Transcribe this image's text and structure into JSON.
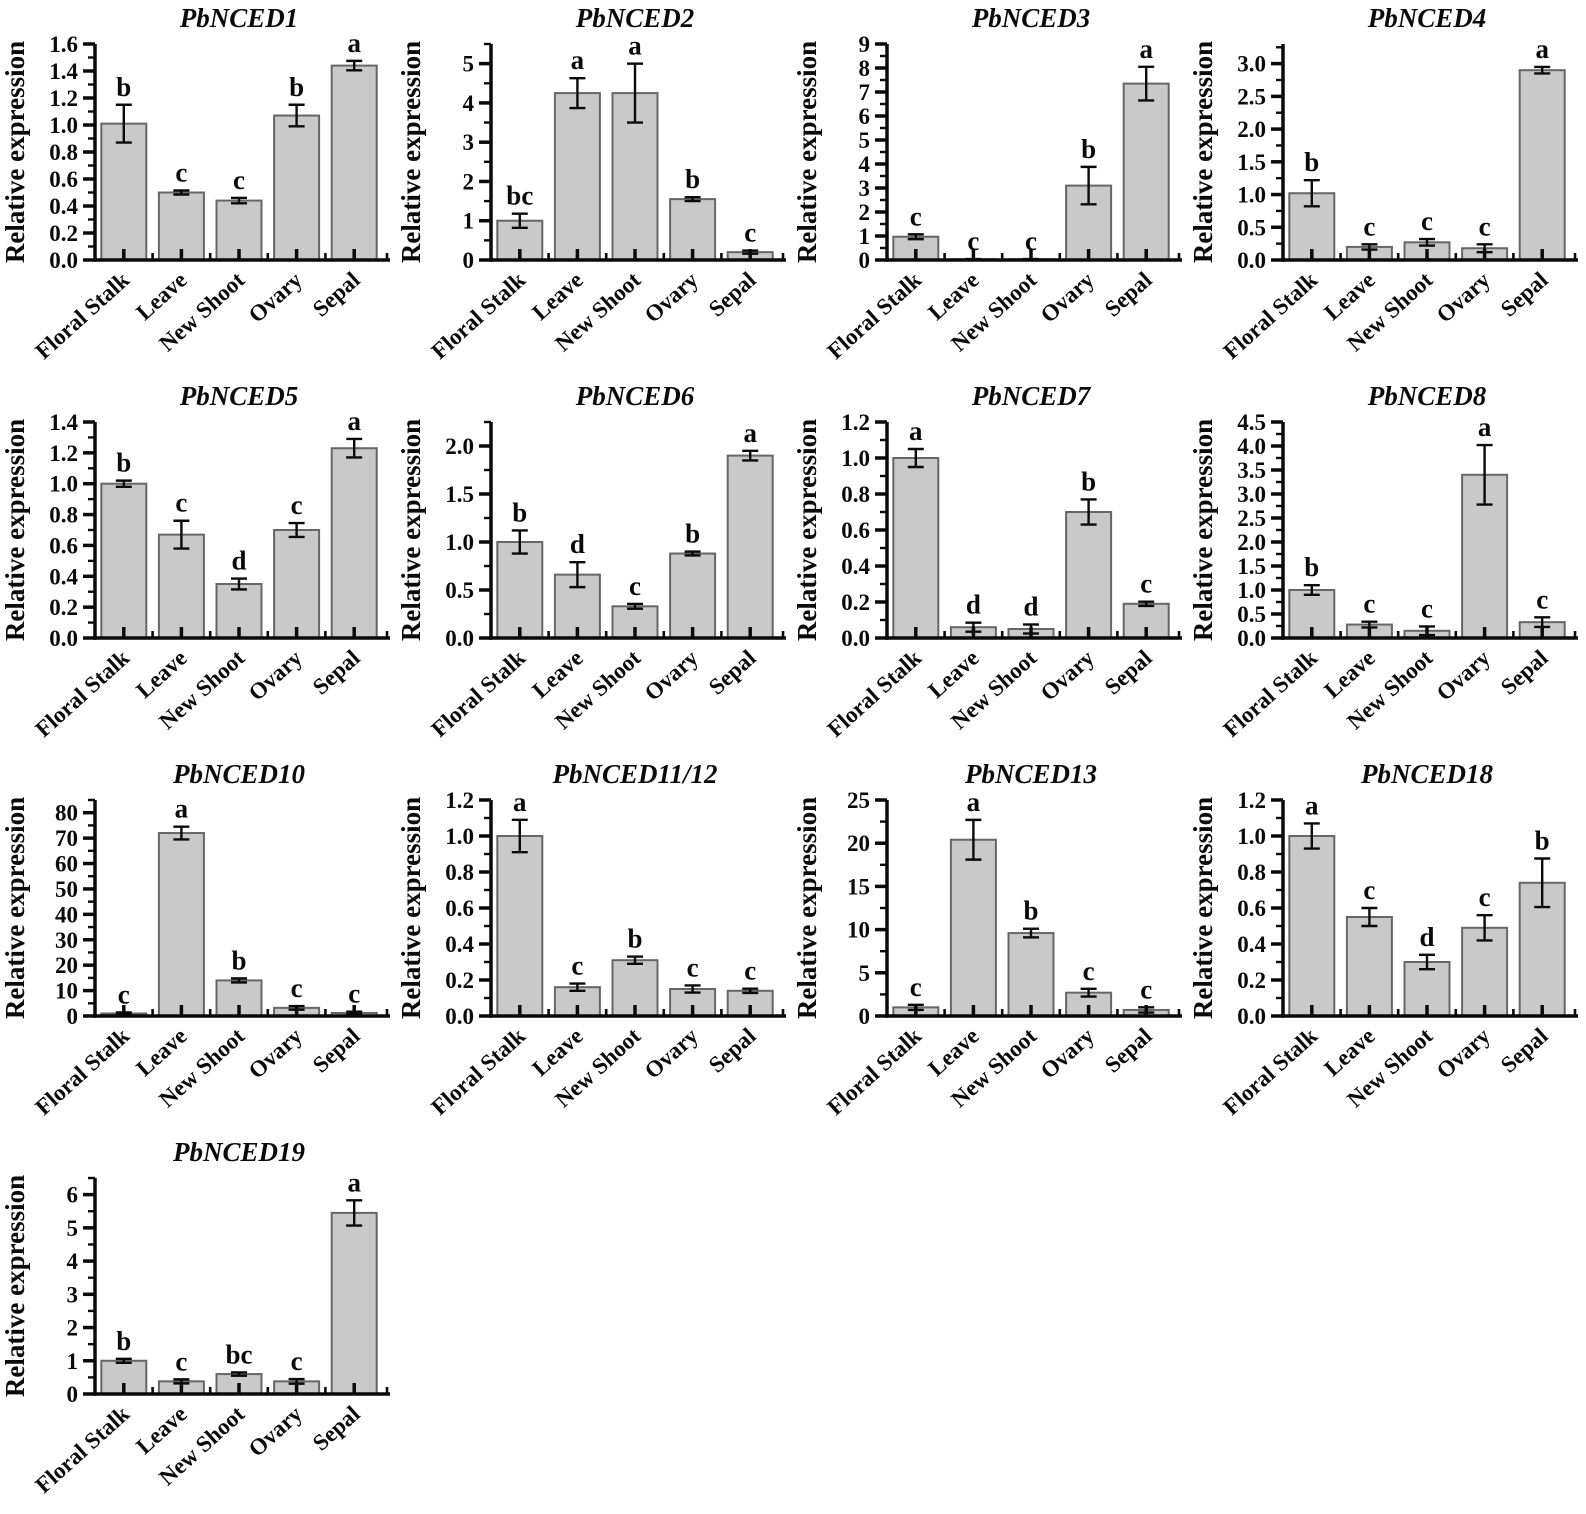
{
  "figure": {
    "ylabel": "Relative expression",
    "categories": [
      "Floral Stalk",
      "Leave",
      "New Shoot",
      "Ovary",
      "Sepal"
    ],
    "colors": {
      "bar_fill": "#c9c9c9",
      "bar_stroke": "#666666",
      "axis": "#0a0a0a",
      "background": "#ffffff"
    }
  },
  "chart_data": [
    {
      "type": "bar",
      "title": "PbNCED1",
      "ylabel": "Relative expression",
      "categories": [
        "Floral Stalk",
        "Leave",
        "New Shoot",
        "Ovary",
        "Sepal"
      ],
      "values": [
        1.01,
        0.5,
        0.44,
        1.07,
        1.44
      ],
      "errors": [
        0.14,
        0.015,
        0.02,
        0.08,
        0.035
      ],
      "letters": [
        "b",
        "c",
        "c",
        "b",
        "a"
      ],
      "ylim": [
        0,
        1.6
      ],
      "ytick_step": 0.2,
      "y_decimals": 1,
      "grid": false,
      "legend": false
    },
    {
      "type": "bar",
      "title": "PbNCED2",
      "ylabel": "Relative expression",
      "categories": [
        "Floral Stalk",
        "Leave",
        "New Shoot",
        "Ovary",
        "Sepal"
      ],
      "values": [
        1.0,
        4.25,
        4.25,
        1.55,
        0.2
      ],
      "errors": [
        0.18,
        0.38,
        0.75,
        0.05,
        0.04
      ],
      "letters": [
        "bc",
        "a",
        "a",
        "b",
        "c"
      ],
      "ylim": [
        0,
        5.5
      ],
      "ytick_step": 1,
      "y_decimals": 0,
      "grid": false,
      "legend": false
    },
    {
      "type": "bar",
      "title": "PbNCED3",
      "ylabel": "Relative expression",
      "categories": [
        "Floral Stalk",
        "Leave",
        "New Shoot",
        "Ovary",
        "Sepal"
      ],
      "values": [
        0.97,
        0.03,
        0.03,
        3.1,
        7.35
      ],
      "errors": [
        0.1,
        0.01,
        0.01,
        0.78,
        0.7
      ],
      "letters": [
        "c",
        "c",
        "c",
        "b",
        "a"
      ],
      "ylim": [
        0,
        9
      ],
      "ytick_step": 1,
      "y_decimals": 0,
      "grid": false,
      "legend": false
    },
    {
      "type": "bar",
      "title": "PbNCED4",
      "ylabel": "Relative expression",
      "categories": [
        "Floral Stalk",
        "Leave",
        "New Shoot",
        "Ovary",
        "Sepal"
      ],
      "values": [
        1.02,
        0.2,
        0.27,
        0.18,
        2.9
      ],
      "errors": [
        0.2,
        0.04,
        0.05,
        0.06,
        0.05
      ],
      "letters": [
        "b",
        "c",
        "c",
        "c",
        "a"
      ],
      "ylim": [
        0,
        3.3
      ],
      "ytick_step": 0.5,
      "y_decimals": 1,
      "grid": false,
      "legend": false
    },
    {
      "type": "bar",
      "title": "PbNCED5",
      "ylabel": "Relative expression",
      "categories": [
        "Floral Stalk",
        "Leave",
        "New Shoot",
        "Ovary",
        "Sepal"
      ],
      "values": [
        1.0,
        0.67,
        0.35,
        0.7,
        1.23
      ],
      "errors": [
        0.02,
        0.09,
        0.035,
        0.045,
        0.06
      ],
      "letters": [
        "b",
        "c",
        "d",
        "c",
        "a"
      ],
      "ylim": [
        0,
        1.4
      ],
      "ytick_step": 0.2,
      "y_decimals": 1,
      "grid": false,
      "legend": false
    },
    {
      "type": "bar",
      "title": "PbNCED6",
      "ylabel": "Relative expression",
      "categories": [
        "Floral Stalk",
        "Leave",
        "New Shoot",
        "Ovary",
        "Sepal"
      ],
      "values": [
        1.0,
        0.66,
        0.33,
        0.88,
        1.9
      ],
      "errors": [
        0.12,
        0.13,
        0.025,
        0.02,
        0.05
      ],
      "letters": [
        "b",
        "d",
        "c",
        "b",
        "a"
      ],
      "ylim": [
        0,
        2.25
      ],
      "ytick_step": 0.5,
      "y_decimals": 1,
      "grid": false,
      "legend": false
    },
    {
      "type": "bar",
      "title": "PbNCED7",
      "ylabel": "Relative expression",
      "categories": [
        "Floral Stalk",
        "Leave",
        "New Shoot",
        "Ovary",
        "Sepal"
      ],
      "values": [
        1.0,
        0.06,
        0.05,
        0.7,
        0.19
      ],
      "errors": [
        0.05,
        0.025,
        0.025,
        0.07,
        0.012
      ],
      "letters": [
        "a",
        "d",
        "d",
        "b",
        "c"
      ],
      "ylim": [
        0,
        1.2
      ],
      "ytick_step": 0.2,
      "y_decimals": 1,
      "grid": false,
      "legend": false
    },
    {
      "type": "bar",
      "title": "PbNCED8",
      "ylabel": "Relative expression",
      "categories": [
        "Floral Stalk",
        "Leave",
        "New Shoot",
        "Ovary",
        "Sepal"
      ],
      "values": [
        1.0,
        0.28,
        0.15,
        3.4,
        0.33
      ],
      "errors": [
        0.1,
        0.06,
        0.09,
        0.62,
        0.1
      ],
      "letters": [
        "b",
        "c",
        "c",
        "a",
        "c"
      ],
      "ylim": [
        0,
        4.5
      ],
      "ytick_step": 0.5,
      "y_decimals": 1,
      "grid": false,
      "legend": false
    },
    {
      "type": "bar",
      "title": "PbNCED10",
      "ylabel": "Relative expression",
      "categories": [
        "Floral Stalk",
        "Leave",
        "New Shoot",
        "Ovary",
        "Sepal"
      ],
      "values": [
        1.0,
        72,
        14,
        3.2,
        1.2
      ],
      "errors": [
        0.4,
        2.5,
        0.8,
        0.7,
        0.5
      ],
      "letters": [
        "c",
        "a",
        "b",
        "c",
        "c"
      ],
      "ylim": [
        0,
        85
      ],
      "ytick_step": 10,
      "y_decimals": 0,
      "grid": false,
      "legend": false
    },
    {
      "type": "bar",
      "title": "PbNCED11/12",
      "ylabel": "Relative expression",
      "categories": [
        "Floral Stalk",
        "Leave",
        "New Shoot",
        "Ovary",
        "Sepal"
      ],
      "values": [
        1.0,
        0.16,
        0.31,
        0.15,
        0.14
      ],
      "errors": [
        0.09,
        0.02,
        0.02,
        0.02,
        0.012
      ],
      "letters": [
        "a",
        "c",
        "b",
        "c",
        "c"
      ],
      "ylim": [
        0,
        1.2
      ],
      "ytick_step": 0.2,
      "y_decimals": 1,
      "grid": false,
      "legend": false
    },
    {
      "type": "bar",
      "title": "PbNCED13",
      "ylabel": "Relative expression",
      "categories": [
        "Floral Stalk",
        "Leave",
        "New Shoot",
        "Ovary",
        "Sepal"
      ],
      "values": [
        1.0,
        20.4,
        9.6,
        2.7,
        0.7
      ],
      "errors": [
        0.3,
        2.3,
        0.5,
        0.45,
        0.3
      ],
      "letters": [
        "c",
        "a",
        "b",
        "c",
        "c"
      ],
      "ylim": [
        0,
        25
      ],
      "ytick_step": 5,
      "y_decimals": 0,
      "grid": false,
      "legend": false
    },
    {
      "type": "bar",
      "title": "PbNCED18",
      "ylabel": "Relative expression",
      "categories": [
        "Floral Stalk",
        "Leave",
        "New Shoot",
        "Ovary",
        "Sepal"
      ],
      "values": [
        1.0,
        0.55,
        0.3,
        0.49,
        0.74
      ],
      "errors": [
        0.07,
        0.05,
        0.04,
        0.07,
        0.135
      ],
      "letters": [
        "a",
        "c",
        "d",
        "c",
        "b"
      ],
      "ylim": [
        0,
        1.2
      ],
      "ytick_step": 0.2,
      "y_decimals": 1,
      "grid": false,
      "legend": false
    },
    {
      "type": "bar",
      "title": "PbNCED19",
      "ylabel": "Relative expression",
      "categories": [
        "Floral Stalk",
        "Leave",
        "New Shoot",
        "Ovary",
        "Sepal"
      ],
      "values": [
        1.0,
        0.38,
        0.6,
        0.38,
        5.45
      ],
      "errors": [
        0.06,
        0.06,
        0.05,
        0.07,
        0.38
      ],
      "letters": [
        "b",
        "c",
        "bc",
        "c",
        "a"
      ],
      "ylim": [
        0,
        6.5
      ],
      "ytick_step": 1,
      "y_decimals": 0,
      "grid": false,
      "legend": false
    }
  ]
}
